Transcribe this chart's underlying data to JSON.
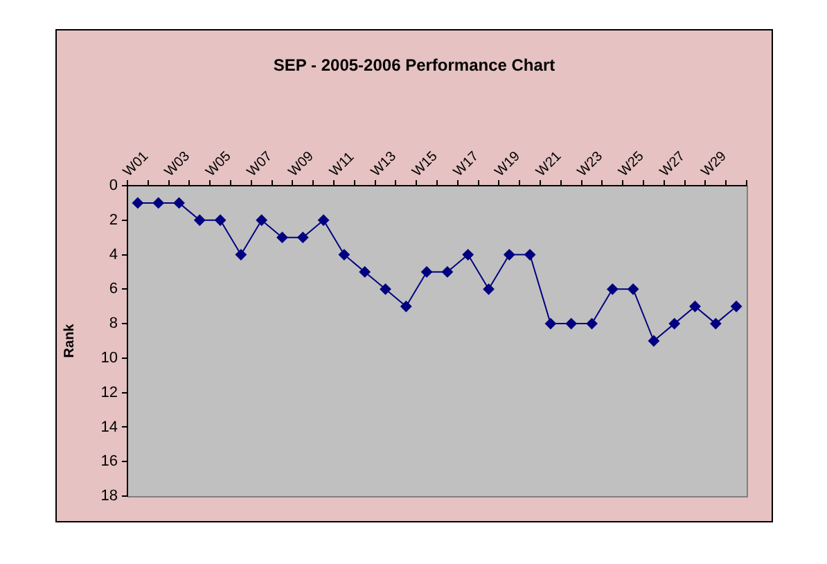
{
  "chart_data": {
    "type": "line",
    "title": "SEP - 2005-2006 Performance Chart",
    "ylabel": "Rank",
    "categories": [
      "W01",
      null,
      "W03",
      null,
      "W05",
      null,
      "W07",
      null,
      "W09",
      null,
      "W11",
      null,
      "W13",
      null,
      "W15",
      null,
      "W17",
      null,
      "W19",
      null,
      "W21",
      null,
      "W23",
      null,
      "W25",
      null,
      "W27",
      null,
      "W29",
      null
    ],
    "series": [
      {
        "color": "#000080",
        "values": [
          1,
          1,
          1,
          2,
          2,
          4,
          2,
          3,
          3,
          2,
          4,
          5,
          6,
          7,
          5,
          5,
          4,
          6,
          4,
          4,
          8,
          8,
          8,
          6,
          6,
          9,
          8,
          7,
          8,
          7
        ]
      }
    ],
    "ylim": [
      18,
      0
    ],
    "yticks": [
      0,
      2,
      4,
      6,
      8,
      10,
      12,
      14,
      16,
      18
    ],
    "marker": "diamond",
    "line_style": "solid"
  }
}
